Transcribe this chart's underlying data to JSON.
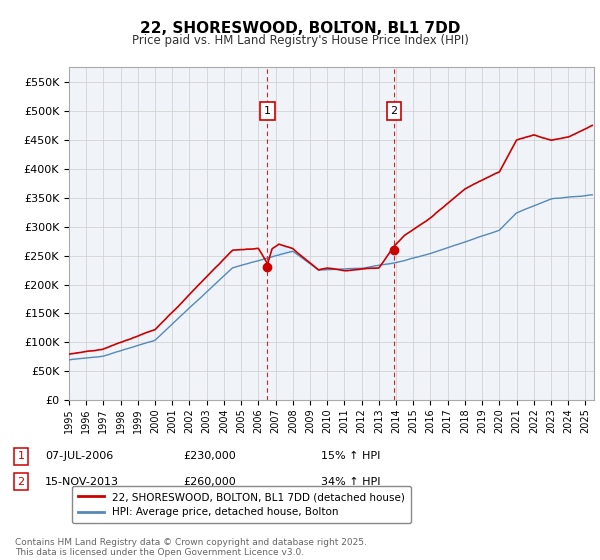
{
  "title": "22, SHORESWOOD, BOLTON, BL1 7DD",
  "subtitle": "Price paid vs. HM Land Registry's House Price Index (HPI)",
  "ylim": [
    0,
    575000
  ],
  "yticks": [
    0,
    50000,
    100000,
    150000,
    200000,
    250000,
    300000,
    350000,
    400000,
    450000,
    500000,
    550000
  ],
  "ytick_labels": [
    "£0",
    "£50K",
    "£100K",
    "£150K",
    "£200K",
    "£250K",
    "£300K",
    "£350K",
    "£400K",
    "£450K",
    "£500K",
    "£550K"
  ],
  "xlim_start": 1995.0,
  "xlim_end": 2025.5,
  "transaction1_x": 2006.52,
  "transaction1_y": 230000,
  "transaction2_x": 2013.88,
  "transaction2_y": 260000,
  "transaction1_date": "07-JUL-2006",
  "transaction1_price": "£230,000",
  "transaction1_hpi": "15% ↑ HPI",
  "transaction2_date": "15-NOV-2013",
  "transaction2_price": "£260,000",
  "transaction2_hpi": "34% ↑ HPI",
  "red_line_color": "#cc0000",
  "blue_line_color": "#5588bb",
  "shaded_color": "#ddeeff",
  "grid_color": "#cccccc",
  "bg_color": "#f0f4f8",
  "legend_label_red": "22, SHORESWOOD, BOLTON, BL1 7DD (detached house)",
  "legend_label_blue": "HPI: Average price, detached house, Bolton",
  "footer": "Contains HM Land Registry data © Crown copyright and database right 2025.\nThis data is licensed under the Open Government Licence v3.0.",
  "dashed_line_color": "#cc0000"
}
